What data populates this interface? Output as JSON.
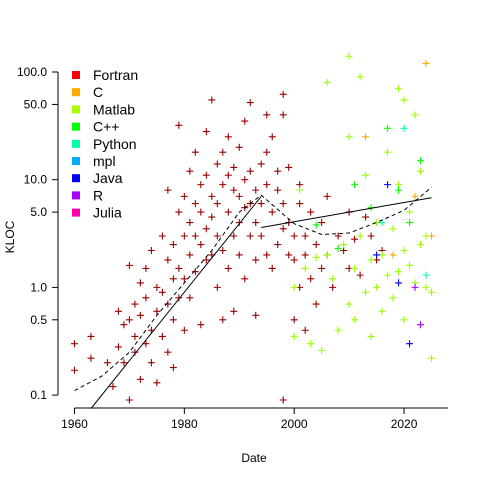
{
  "chart_data": {
    "type": "scatter",
    "title": "",
    "xlabel": "Date",
    "ylabel": "KLOC",
    "xlim": [
      1957,
      2028
    ],
    "ylim_log10": [
      -1.12,
      2.13
    ],
    "log_y": true,
    "x_ticks": [
      1960,
      1980,
      2000,
      2020
    ],
    "x_tick_labels": [
      "1960",
      "1980",
      "2000",
      "2020"
    ],
    "y_ticks": [
      0.1,
      0.5,
      1.0,
      5.0,
      10.0,
      50.0,
      100.0
    ],
    "y_tick_labels": [
      "0.1",
      "0.5",
      "1.0",
      "5.0",
      "10.0",
      "50.0",
      "100.0"
    ],
    "legend": {
      "position": "top-left",
      "entries": [
        {
          "name": "Fortran",
          "color": "#ff0000"
        },
        {
          "name": "C",
          "color": "#ffaa00"
        },
        {
          "name": "Matlab",
          "color": "#aaff00"
        },
        {
          "name": "C++",
          "color": "#00ff00"
        },
        {
          "name": "Python",
          "color": "#00ffaa"
        },
        {
          "name": "mpl",
          "color": "#00aaff"
        },
        {
          "name": "Java",
          "color": "#0000ff"
        },
        {
          "name": "R",
          "color": "#aa00ff"
        },
        {
          "name": "Julia",
          "color": "#ff00aa"
        }
      ]
    },
    "series": [
      {
        "name": "Fortran",
        "color": "#990000",
        "points": [
          [
            1960,
            0.3
          ],
          [
            1960,
            0.17
          ],
          [
            1963,
            0.35
          ],
          [
            1963,
            0.22
          ],
          [
            1966,
            0.2
          ],
          [
            1967,
            0.12
          ],
          [
            1968,
            0.28
          ],
          [
            1968,
            0.6
          ],
          [
            1969,
            0.2
          ],
          [
            1969,
            0.45
          ],
          [
            1970,
            1.6
          ],
          [
            1970,
            0.5
          ],
          [
            1970,
            0.09
          ],
          [
            1971,
            0.7
          ],
          [
            1971,
            0.25
          ],
          [
            1971,
            0.35
          ],
          [
            1972,
            1.1
          ],
          [
            1972,
            0.14
          ],
          [
            1972,
            0.55
          ],
          [
            1973,
            1.5
          ],
          [
            1973,
            0.3
          ],
          [
            1973,
            0.8
          ],
          [
            1974,
            2.2
          ],
          [
            1974,
            0.4
          ],
          [
            1974,
            0.2
          ],
          [
            1975,
            0.6
          ],
          [
            1975,
            1.0
          ],
          [
            1975,
            0.13
          ],
          [
            1976,
            3.0
          ],
          [
            1976,
            0.9
          ],
          [
            1976,
            0.35
          ],
          [
            1977,
            1.8
          ],
          [
            1977,
            0.7
          ],
          [
            1977,
            0.25
          ],
          [
            1977,
            8.0
          ],
          [
            1978,
            2.5
          ],
          [
            1978,
            1.2
          ],
          [
            1978,
            0.5
          ],
          [
            1978,
            0.18
          ],
          [
            1979,
            5.0
          ],
          [
            1979,
            1.5
          ],
          [
            1979,
            0.8
          ],
          [
            1979,
            32.0
          ],
          [
            1980,
            3.0
          ],
          [
            1980,
            7.0
          ],
          [
            1980,
            1.2
          ],
          [
            1980,
            0.4
          ],
          [
            1981,
            4.0
          ],
          [
            1981,
            12.0
          ],
          [
            1981,
            2.0
          ],
          [
            1981,
            0.8
          ],
          [
            1982,
            6.0
          ],
          [
            1982,
            18.0
          ],
          [
            1982,
            3.0
          ],
          [
            1982,
            1.4
          ],
          [
            1983,
            9.0
          ],
          [
            1983,
            2.5
          ],
          [
            1983,
            5.0
          ],
          [
            1983,
            0.45
          ],
          [
            1984,
            3.5
          ],
          [
            1984,
            11.0
          ],
          [
            1984,
            1.8
          ],
          [
            1984,
            28.0
          ],
          [
            1985,
            7.0
          ],
          [
            1985,
            2.0
          ],
          [
            1985,
            55.0
          ],
          [
            1985,
            4.5
          ],
          [
            1986,
            14.0
          ],
          [
            1986,
            3.0
          ],
          [
            1986,
            1.0
          ],
          [
            1986,
            6.0
          ],
          [
            1987,
            9.0
          ],
          [
            1987,
            2.2
          ],
          [
            1987,
            18.0
          ],
          [
            1987,
            0.5
          ],
          [
            1988,
            5.0
          ],
          [
            1988,
            11.0
          ],
          [
            1988,
            25.0
          ],
          [
            1988,
            1.5
          ],
          [
            1989,
            8.0
          ],
          [
            1989,
            3.0
          ],
          [
            1989,
            13.0
          ],
          [
            1989,
            0.6
          ],
          [
            1990,
            7.0
          ],
          [
            1990,
            4.0
          ],
          [
            1990,
            20.0
          ],
          [
            1990,
            2.0
          ],
          [
            1991,
            5.5
          ],
          [
            1991,
            10.0
          ],
          [
            1991,
            1.2
          ],
          [
            1991,
            35.0
          ],
          [
            1992,
            6.0
          ],
          [
            1992,
            3.0
          ],
          [
            1992,
            12.0
          ],
          [
            1992,
            52.0
          ],
          [
            1993,
            4.0
          ],
          [
            1993,
            8.0
          ],
          [
            1993,
            1.8
          ],
          [
            1993,
            0.55
          ],
          [
            1994,
            3.0
          ],
          [
            1994,
            14.0
          ],
          [
            1994,
            6.0
          ],
          [
            1995,
            2.0
          ],
          [
            1995,
            9.0
          ],
          [
            1995,
            18.0
          ],
          [
            1995,
            40.0
          ],
          [
            1996,
            1.5
          ],
          [
            1996,
            5.0
          ],
          [
            1996,
            25.0
          ],
          [
            1997,
            8.0
          ],
          [
            1997,
            2.5
          ],
          [
            1997,
            12.0
          ],
          [
            1998,
            6.0
          ],
          [
            1998,
            3.5
          ],
          [
            1998,
            40.0
          ],
          [
            1998,
            62.0
          ],
          [
            1999,
            2.0
          ],
          [
            1999,
            13.0
          ],
          [
            1999,
            4.0
          ],
          [
            2000,
            1.8
          ],
          [
            2000,
            3.0
          ],
          [
            2000,
            0.5
          ],
          [
            2001,
            6.0
          ],
          [
            2001,
            1.0
          ],
          [
            2001,
            9.0
          ],
          [
            2002,
            3.0
          ],
          [
            2002,
            2.0
          ],
          [
            2002,
            0.4
          ],
          [
            2003,
            1.2
          ],
          [
            2003,
            5.0
          ],
          [
            2004,
            2.5
          ],
          [
            2004,
            0.7
          ],
          [
            2005,
            4.0
          ],
          [
            2005,
            1.5
          ],
          [
            2006,
            2.0
          ],
          [
            2006,
            7.0
          ],
          [
            2007,
            1.0
          ],
          [
            2008,
            3.0
          ],
          [
            2009,
            2.2
          ],
          [
            2010,
            1.5
          ],
          [
            2010,
            5.0
          ],
          [
            2011,
            2.8
          ],
          [
            2012,
            1.3
          ],
          [
            2013,
            4.5
          ],
          [
            2014,
            3.0
          ],
          [
            2015,
            1.8
          ],
          [
            2016,
            2.2
          ],
          [
            1998,
            0.09
          ]
        ]
      },
      {
        "name": "Matlab",
        "color": "#99ff00",
        "points": [
          [
            2000,
            1.0
          ],
          [
            2000,
            0.35
          ],
          [
            2001,
            8.0
          ],
          [
            2002,
            1.5
          ],
          [
            2003,
            0.3
          ],
          [
            2004,
            1.9
          ],
          [
            2005,
            0.26
          ],
          [
            2006,
            2.0
          ],
          [
            2006,
            80.0
          ],
          [
            2007,
            1.2
          ],
          [
            2008,
            0.4
          ],
          [
            2009,
            2.5
          ],
          [
            2010,
            0.7
          ],
          [
            2010,
            25.0
          ],
          [
            2011,
            1.5
          ],
          [
            2011,
            0.5
          ],
          [
            2012,
            3.0
          ],
          [
            2013,
            0.9
          ],
          [
            2013,
            11.0
          ],
          [
            2014,
            1.8
          ],
          [
            2014,
            0.35
          ],
          [
            2015,
            4.0
          ],
          [
            2015,
            1.0
          ],
          [
            2016,
            0.6
          ],
          [
            2016,
            2.0
          ],
          [
            2017,
            1.3
          ],
          [
            2017,
            18.0
          ],
          [
            2018,
            0.8
          ],
          [
            2018,
            3.5
          ],
          [
            2019,
            1.4
          ],
          [
            2019,
            9.0
          ],
          [
            2020,
            2.2
          ],
          [
            2020,
            0.5
          ],
          [
            2020,
            55.0
          ],
          [
            2021,
            1.6
          ],
          [
            2021,
            5.0
          ],
          [
            2022,
            1.1
          ],
          [
            2022,
            40.0
          ],
          [
            2023,
            2.5
          ],
          [
            2023,
            12.0
          ],
          [
            2024,
            1.0
          ],
          [
            2024,
            3.0
          ],
          [
            2025,
            0.9
          ],
          [
            2025,
            0.22
          ],
          [
            2010,
            140.0
          ],
          [
            2012,
            90.0
          ],
          [
            2019,
            70.0
          ]
        ]
      },
      {
        "name": "C++",
        "color": "#00ff00",
        "points": [
          [
            2004,
            3.8
          ],
          [
            2008,
            2.3
          ],
          [
            2011,
            9.0
          ],
          [
            2014,
            5.5
          ],
          [
            2017,
            30.0
          ],
          [
            2019,
            8.0
          ],
          [
            2021,
            4.0
          ],
          [
            2023,
            15.0
          ]
        ]
      },
      {
        "name": "C",
        "color": "#ffaa00",
        "points": [
          [
            2013,
            25.0
          ],
          [
            2018,
            2.0
          ],
          [
            2022,
            7.0
          ],
          [
            2024,
            120.0
          ],
          [
            2025,
            3.0
          ]
        ]
      },
      {
        "name": "Python",
        "color": "#00ffaa",
        "points": [
          [
            2016,
            4.0
          ],
          [
            2020,
            30.0
          ],
          [
            2024,
            1.3
          ]
        ]
      },
      {
        "name": "Java",
        "color": "#0000ff",
        "points": [
          [
            2015,
            2.0
          ],
          [
            2017,
            9.0
          ],
          [
            2019,
            1.1
          ],
          [
            2021,
            0.3
          ]
        ]
      },
      {
        "name": "R",
        "color": "#aa00ff",
        "points": [
          [
            2022,
            1.0
          ],
          [
            2023,
            0.45
          ]
        ]
      }
    ],
    "fit_lines": [
      {
        "name": "solid-early",
        "x": [
          1963,
          1994
        ],
        "y": [
          0.075,
          7.0
        ],
        "style": "solid"
      },
      {
        "name": "solid-late",
        "x": [
          1994,
          2025
        ],
        "y": [
          3.6,
          6.8
        ],
        "style": "solid"
      },
      {
        "name": "smooth",
        "x": [
          1960,
          1965,
          1970,
          1975,
          1980,
          1985,
          1990,
          1994,
          2000,
          2005,
          2010,
          2015,
          2020,
          2025
        ],
        "y": [
          0.11,
          0.15,
          0.25,
          0.55,
          1.1,
          2.2,
          5.0,
          7.2,
          3.9,
          3.1,
          3.2,
          4.0,
          5.2,
          8.5
        ],
        "style": "dashed"
      }
    ]
  }
}
